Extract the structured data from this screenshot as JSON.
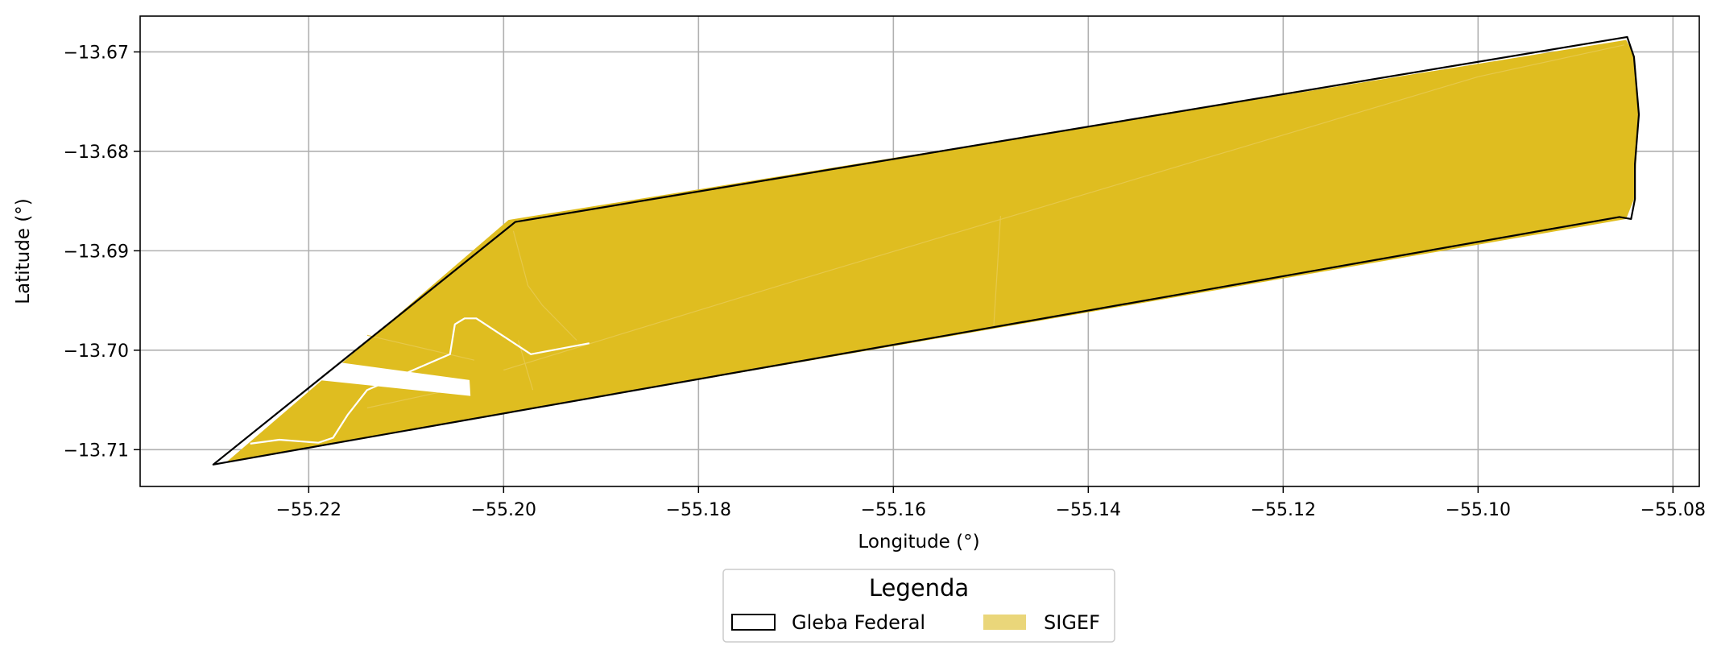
{
  "chart_data": {
    "type": "map",
    "xlabel": "Longitude (°)",
    "ylabel": "Latitude (°)",
    "xlim": [
      -55.2373,
      -55.0773
    ],
    "ylim": [
      -13.7137,
      -13.6664
    ],
    "x_ticks": [
      -55.22,
      -55.2,
      -55.18,
      -55.16,
      -55.14,
      -55.12,
      -55.1,
      -55.08
    ],
    "x_tick_labels": [
      "−55.22",
      "−55.20",
      "−55.18",
      "−55.16",
      "−55.14",
      "−55.12",
      "−55.10",
      "−55.08"
    ],
    "y_ticks": [
      -13.67,
      -13.68,
      -13.69,
      -13.7,
      -13.71
    ],
    "y_tick_labels": [
      "−13.67",
      "−13.68",
      "−13.69",
      "−13.70",
      "−13.71"
    ],
    "grid": true,
    "colors": {
      "sigef_fill": "#dfbd20",
      "sigef_legend": "#ead67a",
      "gleba_edge": "#000000",
      "grid": "#b0b0b0"
    },
    "legend": {
      "title": "Legenda",
      "placement": "bottom-center",
      "entries": [
        {
          "label": "Gleba Federal",
          "style": "outline"
        },
        {
          "label": "SIGEF",
          "style": "fill"
        }
      ]
    },
    "layers": {
      "sigef": [
        [
          -55.2285,
          -13.7113
        ],
        [
          -55.1995,
          -13.6869
        ],
        [
          -55.0848,
          -13.6688
        ],
        [
          -55.084,
          -13.6703
        ],
        [
          -55.0835,
          -13.6763
        ],
        [
          -55.084,
          -13.6848
        ],
        [
          -55.0848,
          -13.6868
        ],
        [
          -55.1995,
          -13.7063
        ]
      ],
      "gleba_federal": [
        [
          -55.2298,
          -13.7115
        ],
        [
          -55.1988,
          -13.6871
        ],
        [
          -55.0847,
          -13.6685
        ],
        [
          -55.084,
          -13.6705
        ],
        [
          -55.0835,
          -13.6763
        ],
        [
          -55.0839,
          -13.6813
        ],
        [
          -55.0839,
          -13.6848
        ],
        [
          -55.0843,
          -13.6868
        ],
        [
          -55.0855,
          -13.6866
        ],
        [
          -55.2298,
          -13.7115
        ]
      ],
      "gaps": [
        [
          [
            -55.2199,
            -13.7015
          ],
          [
            -55.217,
            -13.7012
          ],
          [
            -55.2035,
            -13.703
          ],
          [
            -55.2034,
            -13.7046
          ],
          [
            -55.2199,
            -13.7029
          ]
        ]
      ],
      "internal_lines": [
        [
          [
            -55.226,
            -13.7094
          ],
          [
            -55.223,
            -13.709
          ],
          [
            -55.219,
            -13.7093
          ],
          [
            -55.2175,
            -13.7088
          ],
          [
            -55.216,
            -13.7065
          ],
          [
            -55.214,
            -13.704
          ],
          [
            -55.2055,
            -13.7004
          ],
          [
            -55.205,
            -13.6974
          ],
          [
            -55.204,
            -13.6968
          ],
          [
            -55.2028,
            -13.6968
          ],
          [
            -55.1972,
            -13.7004
          ],
          [
            -55.1912,
            -13.6993
          ]
        ]
      ],
      "faint_lines": [
        [
          [
            -55.214,
            -13.6985
          ],
          [
            -55.203,
            -13.701
          ]
        ],
        [
          [
            -55.2055,
            -13.704
          ],
          [
            -55.214,
            -13.7058
          ]
        ],
        [
          [
            -55.1985,
            -13.699
          ],
          [
            -55.197,
            -13.704
          ]
        ],
        [
          [
            -55.199,
            -13.688
          ],
          [
            -55.1975,
            -13.6935
          ],
          [
            -55.196,
            -13.6955
          ],
          [
            -55.1925,
            -13.699
          ]
        ],
        [
          [
            -55.2,
            -13.702
          ],
          [
            -55.17,
            -13.693
          ],
          [
            -55.1,
            -13.6725
          ],
          [
            -55.085,
            -13.6693
          ]
        ],
        [
          [
            -55.149,
            -13.6865
          ],
          [
            -55.1497,
            -13.6975
          ]
        ]
      ]
    }
  }
}
